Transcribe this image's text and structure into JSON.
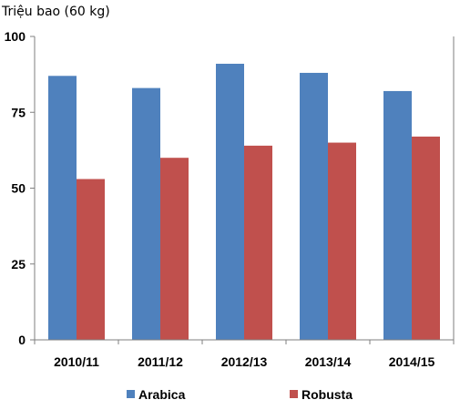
{
  "chart_data": {
    "type": "bar",
    "ylabel": "Triệu bao (60 kg)",
    "categories": [
      "2010/11",
      "2011/12",
      "2012/13",
      "2013/14",
      "2014/15"
    ],
    "series": [
      {
        "name": "Arabica",
        "values": [
          87,
          83,
          91,
          88,
          82
        ],
        "color": "#4F81BD"
      },
      {
        "name": "Robusta",
        "values": [
          53,
          60,
          64,
          65,
          67
        ],
        "color": "#C0504D"
      }
    ],
    "ylim": [
      0,
      100
    ],
    "yticks": [
      0,
      25,
      50,
      75,
      100
    ],
    "grid": false,
    "legend_position": "bottom"
  }
}
